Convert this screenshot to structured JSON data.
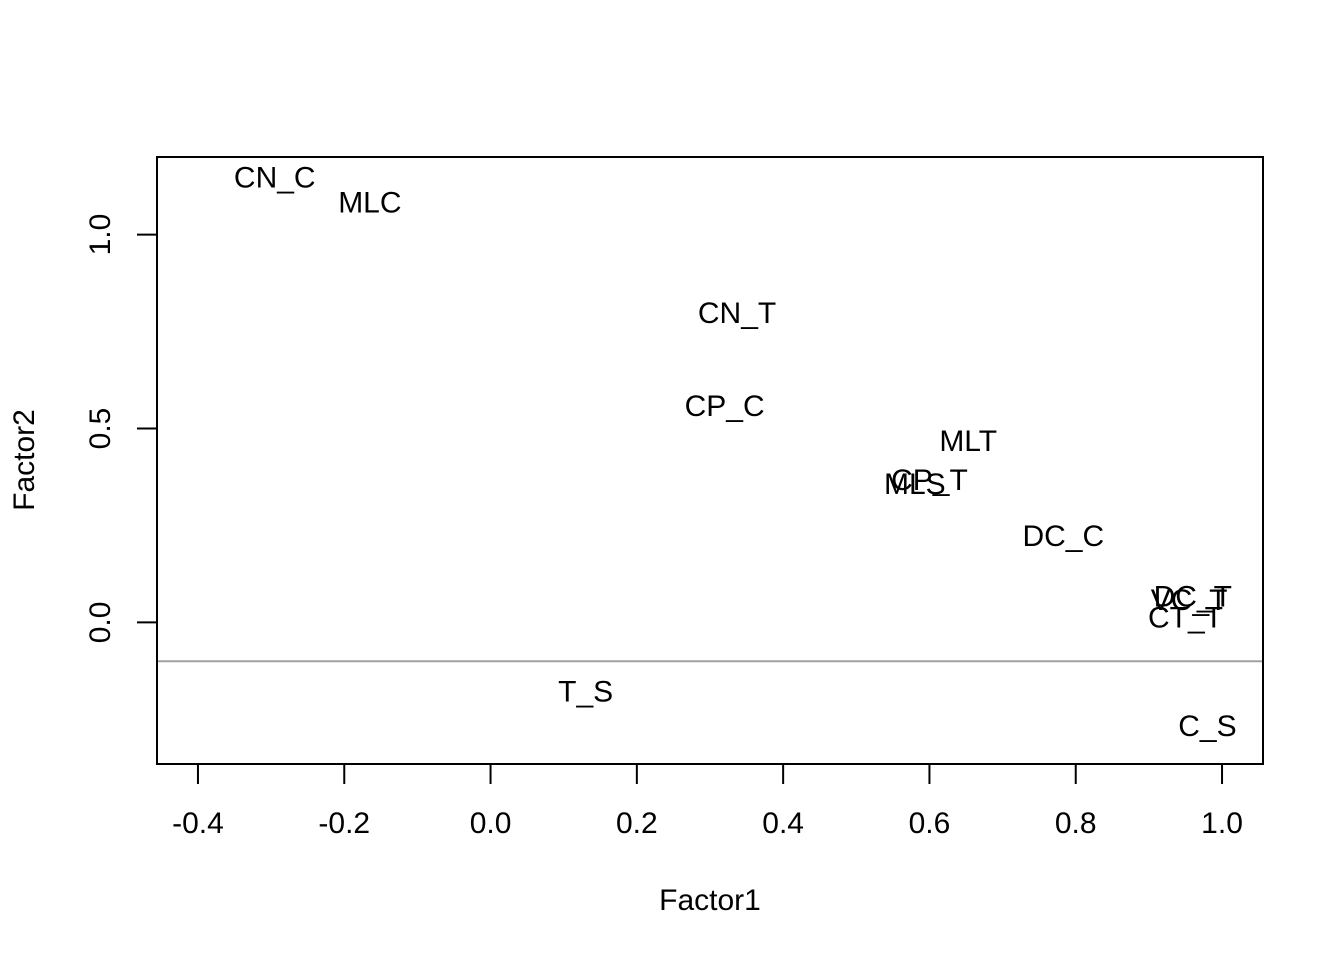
{
  "chart_data": {
    "type": "scatter",
    "xlabel": "Factor1",
    "ylabel": "Factor2",
    "xlim": [
      -0.456,
      1.056
    ],
    "ylim": [
      -0.365,
      1.2
    ],
    "x_ticks": [
      -0.4,
      -0.2,
      0.0,
      0.2,
      0.4,
      0.6,
      0.8,
      1.0
    ],
    "x_tick_labels": [
      "-0.4",
      "-0.2",
      "0.0",
      "0.2",
      "0.4",
      "0.6",
      "0.8",
      "1.0"
    ],
    "y_ticks": [
      0.0,
      0.5,
      1.0
    ],
    "y_tick_labels": [
      "0.0",
      "0.5",
      "1.0"
    ],
    "hline": {
      "y": -0.1,
      "color": "#a0a0a0"
    },
    "points": [
      {
        "label": "CN_C",
        "x": -0.295,
        "y": 1.15
      },
      {
        "label": "MLC",
        "x": -0.165,
        "y": 1.085
      },
      {
        "label": "CN_T",
        "x": 0.337,
        "y": 0.8
      },
      {
        "label": "CP_C",
        "x": 0.32,
        "y": 0.56
      },
      {
        "label": "MLT",
        "x": 0.653,
        "y": 0.47
      },
      {
        "label": "CP_T",
        "x": 0.6,
        "y": 0.37
      },
      {
        "label": "MLS",
        "x": 0.58,
        "y": 0.36
      },
      {
        "label": "DC_C",
        "x": 0.783,
        "y": 0.225
      },
      {
        "label": "DC_T",
        "x": 0.96,
        "y": 0.07
      },
      {
        "label": "VC_T",
        "x": 0.955,
        "y": 0.06
      },
      {
        "label": "CT_T",
        "x": 0.95,
        "y": 0.015
      },
      {
        "label": "T_S",
        "x": 0.13,
        "y": -0.175
      },
      {
        "label": "C_S",
        "x": 0.98,
        "y": -0.265
      }
    ]
  }
}
